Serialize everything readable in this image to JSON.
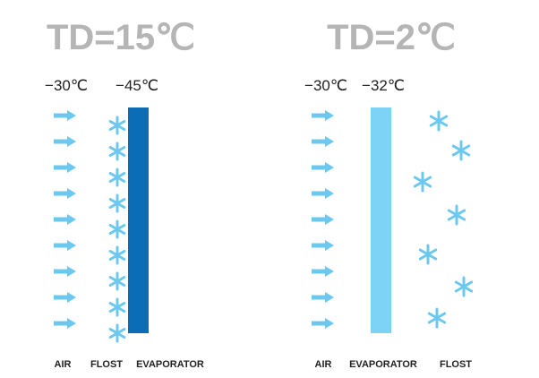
{
  "left": {
    "title": "TD=15℃",
    "air_temp": "−30℃",
    "evaporator_temp": "−45℃",
    "labels": [
      "AIR",
      "FLOST",
      "EVAPORATOR"
    ]
  },
  "right": {
    "title": "TD=2℃",
    "air_temp": "−30℃",
    "evaporator_temp": "−32℃",
    "labels": [
      "AIR",
      "EVAPORATOR",
      "FLOST"
    ]
  }
}
